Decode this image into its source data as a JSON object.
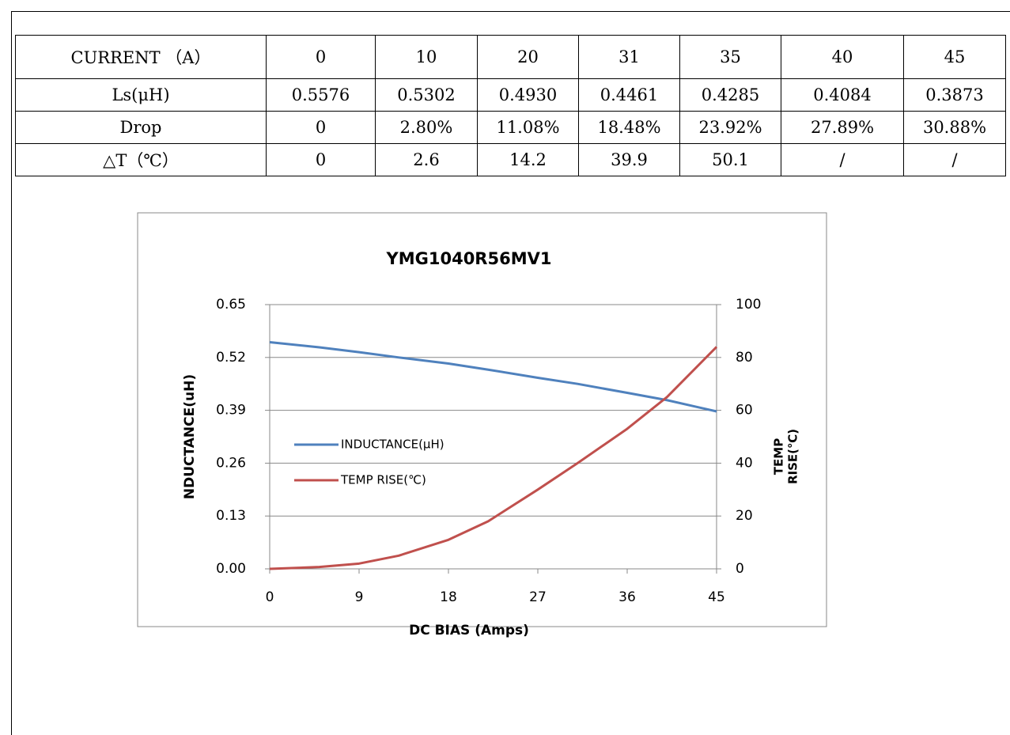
{
  "table": {
    "rows": [
      [
        "CURRENT （A）",
        "0",
        "10",
        "20",
        "31",
        "35",
        "40",
        "45"
      ],
      [
        "Ls(μH)",
        "0.5576",
        "0.5302",
        "0.4930",
        "0.4461",
        "0.4285",
        "0.4084",
        "0.3873"
      ],
      [
        "Drop",
        "0",
        "2.80%",
        "11.08%",
        "18.48%",
        "23.92%",
        "27.89%",
        "30.88%"
      ],
      [
        "△T（℃）",
        "0",
        "2.6",
        "14.2",
        "39.9",
        "50.1",
        "/",
        "/"
      ]
    ]
  },
  "chart_data": {
    "type": "line",
    "title": "YMG1040R56MV1",
    "x_label": "DC BIAS (Amps)",
    "y_label": "NDUCTANCE(uH)",
    "y2_label": [
      "TEMP",
      "RISE(℃)"
    ],
    "x": [
      0,
      5,
      9,
      13,
      18,
      22,
      27,
      31,
      36,
      40,
      45
    ],
    "series": [
      {
        "name": "INDUCTANCE(μH)",
        "color": "#4f81bd",
        "values": [
          0.5576,
          0.545,
          0.533,
          0.52,
          0.505,
          0.49,
          0.47,
          0.455,
          0.433,
          0.415,
          0.3873
        ]
      },
      {
        "name": "TEMP RISE(℃)",
        "color": "#c0504d",
        "axis": "y2",
        "values": [
          0,
          0.7,
          2,
          5,
          11,
          18,
          30,
          40,
          53,
          65,
          84
        ]
      }
    ],
    "xlim": [
      0,
      45
    ],
    "xticks": [
      0,
      9,
      18,
      27,
      36,
      45
    ],
    "ylim": [
      0,
      0.65
    ],
    "yticks": [
      {
        "value": 0,
        "label": "0.00"
      },
      0.13,
      0.26,
      0.39,
      0.52,
      0.65
    ],
    "y2lim": [
      0,
      100
    ],
    "y2ticks": [
      0,
      20,
      40,
      60,
      80,
      100
    ],
    "grid": true
  }
}
